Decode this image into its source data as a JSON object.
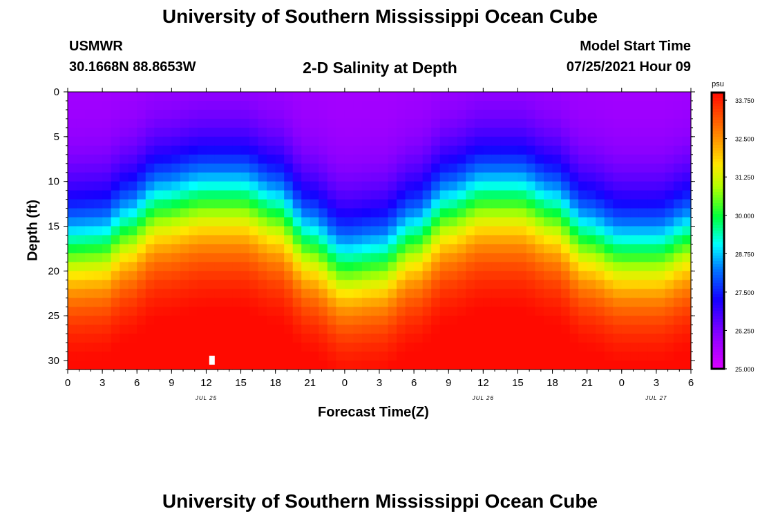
{
  "header": {
    "title_top": "University of Southern Mississippi Ocean Cube",
    "station": "USMWR",
    "coords": "30.1668N  88.8653W",
    "product": "2-D Salinity at Depth",
    "model_start_label": "Model Start Time",
    "model_start_value": "07/25/2021 Hour 09",
    "title_bottom": "University of Southern Mississippi Ocean Cube"
  },
  "colors": {
    "low": "#cc00ff",
    "high": "#ff1a00"
  },
  "chart_data": {
    "type": "heatmap",
    "title": "2-D Salinity at Depth",
    "xlabel": "Forecast Time(Z)",
    "ylabel": "Depth (ft)",
    "x_hours_range": [
      0,
      54
    ],
    "y_range": [
      0,
      31
    ],
    "x_ticks": [
      0,
      3,
      6,
      9,
      12,
      15,
      18,
      21,
      24,
      27,
      30,
      33,
      36,
      39,
      42,
      45,
      48,
      51,
      54
    ],
    "x_tick_labels": [
      "0",
      "3",
      "6",
      "9",
      "12",
      "15",
      "18",
      "21",
      "0",
      "3",
      "6",
      "9",
      "12",
      "15",
      "18",
      "21",
      "0",
      "3",
      "6"
    ],
    "y_ticks": [
      0,
      5,
      10,
      15,
      20,
      25,
      30
    ],
    "y_tick_labels": [
      "0",
      "5",
      "10",
      "15",
      "20",
      "25",
      "30"
    ],
    "date_labels": [
      {
        "hour": 12,
        "text": "JUL 25"
      },
      {
        "hour": 36,
        "text": "JUL 26"
      },
      {
        "hour": 51,
        "text": "JUL 27"
      }
    ],
    "marker": {
      "hour": 12.5,
      "depth": 30
    },
    "colorbar": {
      "unit": "psu",
      "min": 25.0,
      "max": 34.0,
      "tick_values": [
        25.0,
        26.25,
        27.5,
        28.75,
        30.0,
        31.25,
        32.5,
        33.75
      ],
      "tick_labels": [
        "25.000",
        "26.250",
        "27.500",
        "28.750",
        "30.000",
        "31.250",
        "32.500",
        "33.750"
      ]
    },
    "halocline_depth_ft": [
      {
        "hour": 0,
        "depth": 17.5
      },
      {
        "hour": 3,
        "depth": 17.3
      },
      {
        "hour": 5,
        "depth": 15.5
      },
      {
        "hour": 8,
        "depth": 13.0
      },
      {
        "hour": 12,
        "depth": 12.0
      },
      {
        "hour": 15,
        "depth": 12.0
      },
      {
        "hour": 18,
        "depth": 13.5
      },
      {
        "hour": 21,
        "depth": 17.0
      },
      {
        "hour": 24,
        "depth": 19.5
      },
      {
        "hour": 27,
        "depth": 19.0
      },
      {
        "hour": 30,
        "depth": 16.5
      },
      {
        "hour": 33,
        "depth": 13.5
      },
      {
        "hour": 36,
        "depth": 12.0
      },
      {
        "hour": 39,
        "depth": 12.0
      },
      {
        "hour": 42,
        "depth": 13.5
      },
      {
        "hour": 45,
        "depth": 16.5
      },
      {
        "hour": 48,
        "depth": 18.0
      },
      {
        "hour": 51,
        "depth": 18.0
      },
      {
        "hour": 54,
        "depth": 16.5
      }
    ]
  }
}
